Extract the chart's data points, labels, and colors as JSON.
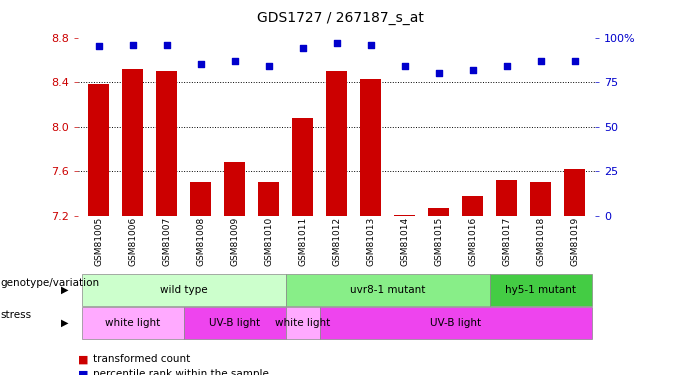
{
  "title": "GDS1727 / 267187_s_at",
  "samples": [
    "GSM81005",
    "GSM81006",
    "GSM81007",
    "GSM81008",
    "GSM81009",
    "GSM81010",
    "GSM81011",
    "GSM81012",
    "GSM81013",
    "GSM81014",
    "GSM81015",
    "GSM81016",
    "GSM81017",
    "GSM81018",
    "GSM81019"
  ],
  "bar_values": [
    8.38,
    8.52,
    8.5,
    7.5,
    7.68,
    7.5,
    8.08,
    8.5,
    8.43,
    7.21,
    7.27,
    7.38,
    7.52,
    7.5,
    7.62
  ],
  "dot_values": [
    95,
    96,
    96,
    85,
    87,
    84,
    94,
    97,
    96,
    84,
    80,
    82,
    84,
    87,
    87
  ],
  "ylim_left": [
    7.2,
    8.8
  ],
  "ylim_right": [
    0,
    100
  ],
  "yticks_left": [
    7.2,
    7.6,
    8.0,
    8.4,
    8.8
  ],
  "yticks_right": [
    0,
    25,
    50,
    75,
    100
  ],
  "yticklabels_right": [
    "0",
    "25",
    "50",
    "75",
    "100%"
  ],
  "bar_color": "#cc0000",
  "dot_color": "#0000cc",
  "bar_bottom": 7.2,
  "genotype_groups": [
    {
      "label": "wild type",
      "start": 0,
      "end": 6,
      "color": "#ccffcc"
    },
    {
      "label": "uvr8-1 mutant",
      "start": 6,
      "end": 12,
      "color": "#88ee88"
    },
    {
      "label": "hy5-1 mutant",
      "start": 12,
      "end": 15,
      "color": "#44cc44"
    }
  ],
  "stress_groups": [
    {
      "label": "white light",
      "start": 0,
      "end": 3,
      "color": "#ffaaff"
    },
    {
      "label": "UV-B light",
      "start": 3,
      "end": 6,
      "color": "#ee44ee"
    },
    {
      "label": "white light",
      "start": 6,
      "end": 7,
      "color": "#ffaaff"
    },
    {
      "label": "UV-B light",
      "start": 7,
      "end": 15,
      "color": "#ee44ee"
    }
  ],
  "legend_items": [
    {
      "label": "transformed count",
      "color": "#cc0000"
    },
    {
      "label": "percentile rank within the sample",
      "color": "#0000cc"
    }
  ],
  "bg_color": "#ffffff",
  "tick_color_left": "#cc0000",
  "tick_color_right": "#0000cc",
  "grid_yticks": [
    7.6,
    8.0,
    8.4
  ]
}
